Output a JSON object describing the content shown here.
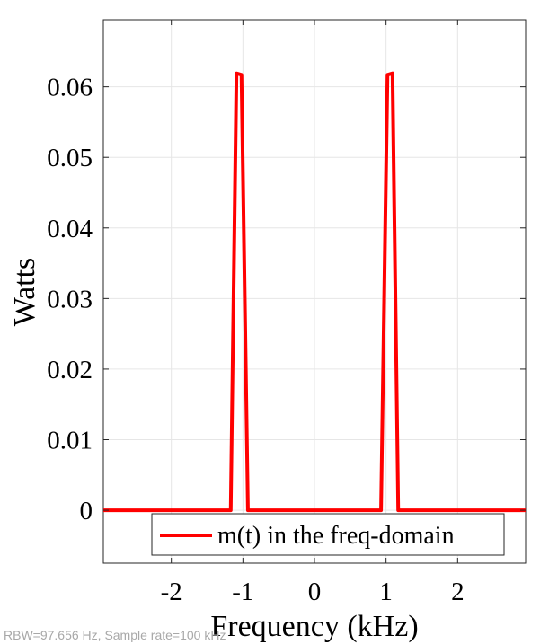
{
  "chart_data": {
    "type": "line",
    "title": "",
    "xlabel": "Frequency (kHz)",
    "ylabel": "Watts",
    "xlim": [
      -2.95,
      2.95
    ],
    "ylim": [
      -0.0075,
      0.0695
    ],
    "xticks": [
      -2,
      -1,
      0,
      1,
      2
    ],
    "xtick_labels": [
      "-2",
      "-1",
      "0",
      "1",
      "2"
    ],
    "yticks": [
      0,
      0.01,
      0.02,
      0.03,
      0.04,
      0.05,
      0.06
    ],
    "ytick_labels": [
      "0",
      "0.01",
      "0.02",
      "0.03",
      "0.04",
      "0.05",
      "0.06"
    ],
    "grid": true,
    "legend_position": "bottom-right",
    "series": [
      {
        "name": "m(t) in the freq-domain",
        "color": "#ff0000",
        "x": [
          -2.95,
          -1.17,
          -1.09,
          -1.02,
          -0.93,
          0.93,
          1.02,
          1.09,
          1.17,
          2.95
        ],
        "y": [
          0,
          0,
          0.0619,
          0.0617,
          0,
          0,
          0.0617,
          0.0619,
          0,
          0
        ]
      }
    ],
    "footnote": "RBW=97.656 Hz, Sample rate=100 kHz"
  }
}
